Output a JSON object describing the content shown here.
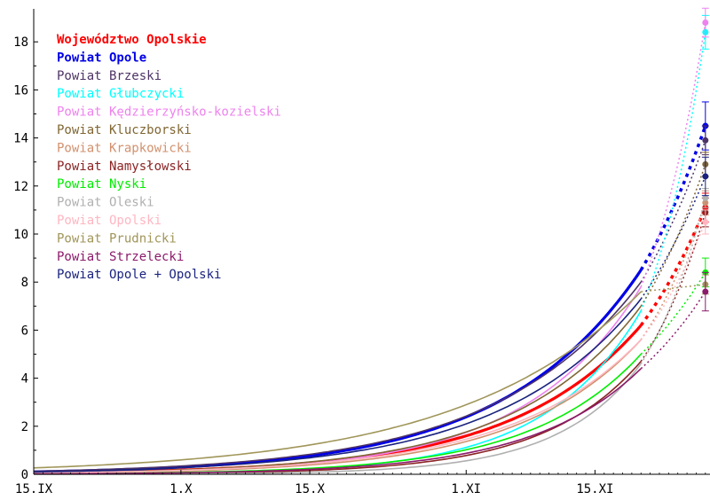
{
  "chart_data": {
    "type": "line",
    "title": "",
    "xlabel": "",
    "ylabel": "",
    "x_ticks": [
      "15.IX",
      "1.X",
      "15.X",
      "1.XI",
      "15.XI"
    ],
    "y_ticks": [
      0,
      2,
      4,
      6,
      8,
      10,
      12,
      14,
      16,
      18
    ],
    "xlim": [
      0,
      73.5
    ],
    "ylim": [
      0,
      19.5
    ],
    "fit_end_day": 66,
    "forecast_day": 73,
    "legend_position": "top-left",
    "series": [
      {
        "name": "Województwo Opolskie",
        "color": "#ff0000",
        "bold": true,
        "k": 0.0713,
        "end": 6.2,
        "forecast": 11.1,
        "err": 0.6
      },
      {
        "name": "Powiat Opole",
        "color": "#0000e6",
        "bold": true,
        "k": 0.0668,
        "end": 8.5,
        "forecast": 14.5,
        "err": 1.0
      },
      {
        "name": "Powiat Brzeski",
        "color": "#4d3366",
        "bold": false,
        "k": 0.0629,
        "end": 8.0,
        "forecast": 13.9,
        "err": 0.6
      },
      {
        "name": "Powiat Głubczycki",
        "color": "#00ffff",
        "bold": false,
        "k": 0.095,
        "end": 6.8,
        "forecast": 18.4,
        "err": 0.7
      },
      {
        "name": "Powiat Kędzierzyńsko-kozielski",
        "color": "#ee82ee",
        "bold": false,
        "k": 0.0789,
        "end": 7.8,
        "forecast": 18.8,
        "err": 0.6
      },
      {
        "name": "Powiat Kluczborski",
        "color": "#806633",
        "bold": false,
        "k": 0.0726,
        "end": 7.0,
        "forecast": 12.9,
        "err": 0.5
      },
      {
        "name": "Powiat Krapkowicki",
        "color": "#d2916e",
        "bold": false,
        "k": 0.0743,
        "end": 5.6,
        "forecast": 11.3,
        "err": 0.5
      },
      {
        "name": "Powiat Namysłowski",
        "color": "#8b2323",
        "bold": false,
        "k": 0.0944,
        "end": 4.7,
        "forecast": 10.9,
        "err": 0.6
      },
      {
        "name": "Powiat Nyski",
        "color": "#00ee00",
        "bold": false,
        "k": 0.0836,
        "end": 5.0,
        "forecast": 8.4,
        "err": 0.6
      },
      {
        "name": "Powiat Oleski",
        "color": "#b0b0b0",
        "bold": false,
        "k": 0.1106,
        "end": 4.6,
        "forecast": 11.5,
        "err": 0.4
      },
      {
        "name": "Powiat Opolski",
        "color": "#ffb6c1",
        "bold": false,
        "k": 0.0707,
        "end": 5.6,
        "forecast": 10.5,
        "err": 0.5
      },
      {
        "name": "Powiat Prudnicki",
        "color": "#a0965a",
        "bold": false,
        "k": 0.0508,
        "end": 7.6,
        "forecast": 7.9,
        "err": 0.4
      },
      {
        "name": "Powiat Strzelecki",
        "color": "#8b1a6b",
        "bold": false,
        "k": 0.0851,
        "end": 4.4,
        "forecast": 7.6,
        "err": 0.8
      },
      {
        "name": "Powiat Opole + Opolski",
        "color": "#1a237e",
        "bold": false,
        "k": 0.0656,
        "end": 7.3,
        "forecast": 12.4,
        "err": 0.8
      }
    ]
  }
}
